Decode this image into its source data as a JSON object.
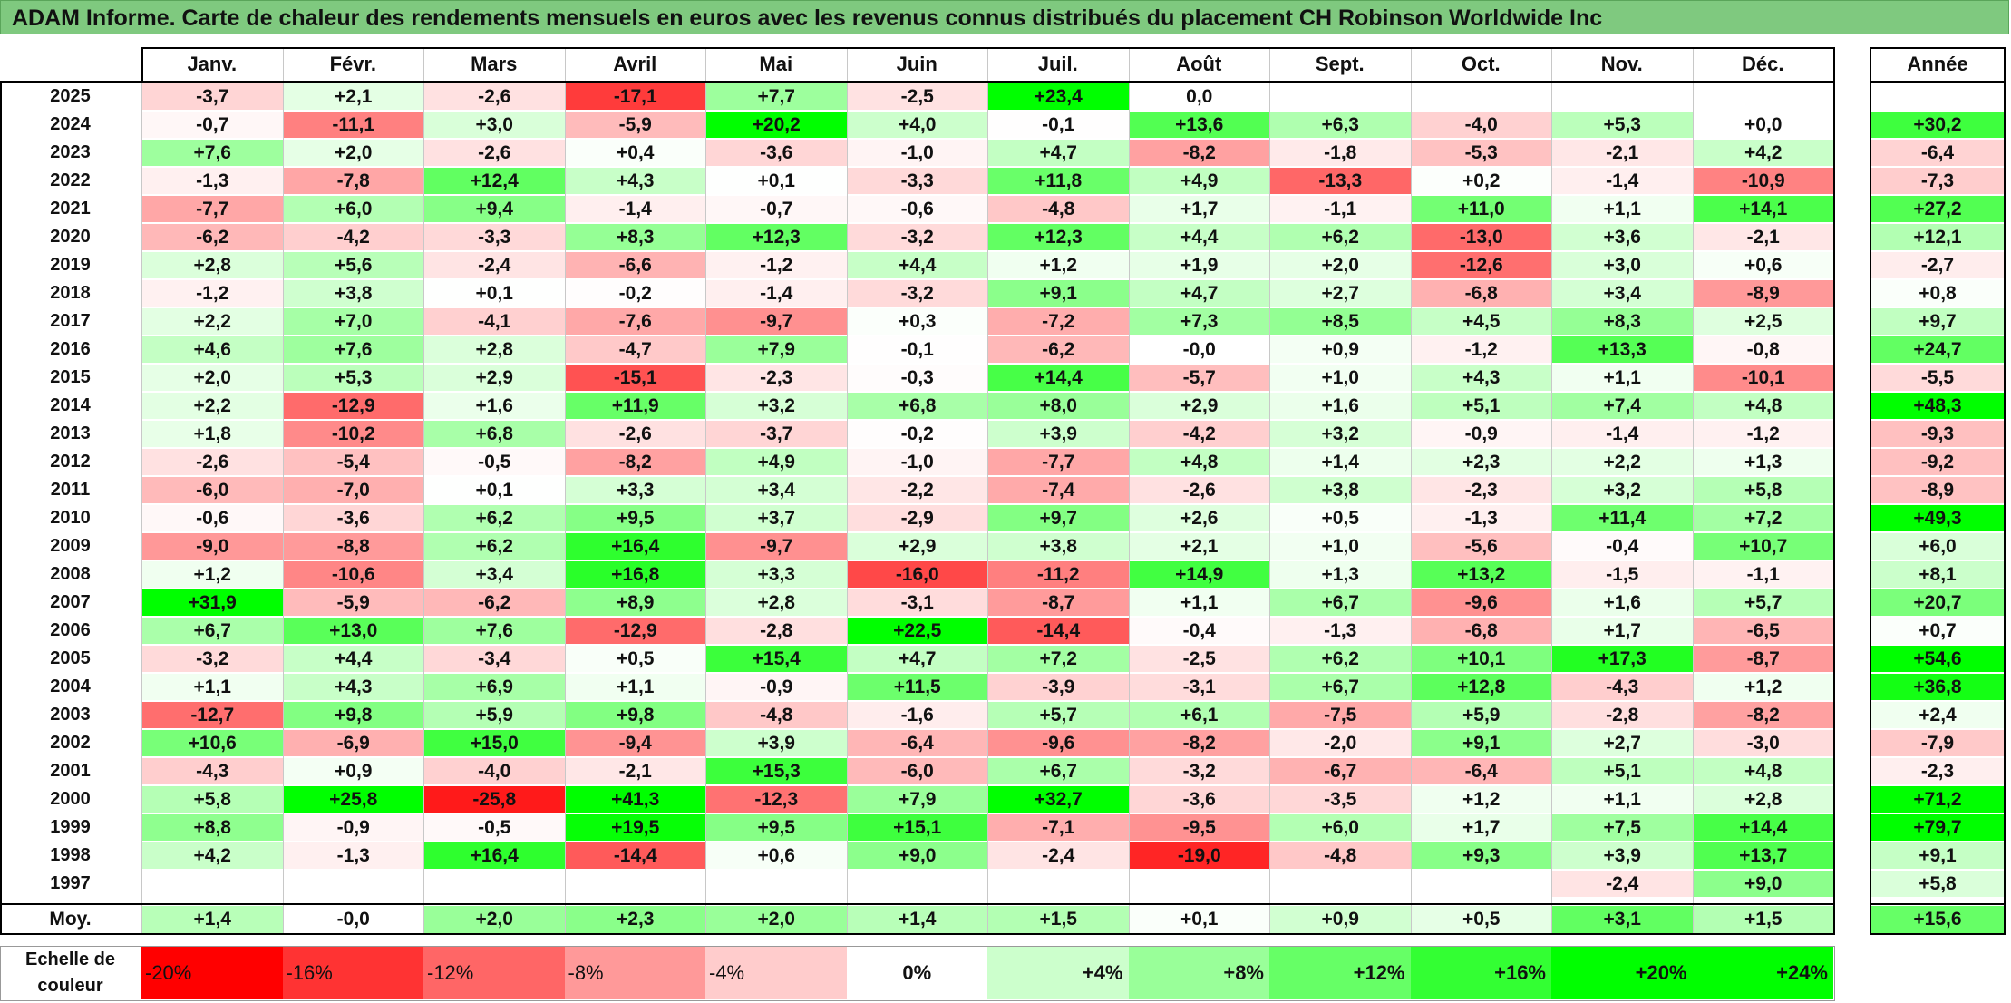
{
  "title": "ADAM Informe. Carte de chaleur des rendements mensuels en euros avec les revenus connus distribués du placement CH Robinson Worldwide Inc",
  "chart_data": {
    "type": "heatmap",
    "columns": [
      "Janv.",
      "Févr.",
      "Mars",
      "Avril",
      "Mai",
      "Juin",
      "Juil.",
      "Août",
      "Sept.",
      "Oct.",
      "Nov.",
      "Déc."
    ],
    "year_column": "Année",
    "rows": [
      {
        "year": "2025",
        "months": [
          "-3,7",
          "+2,1",
          "-2,6",
          "-17,1",
          "+7,7",
          "-2,5",
          "+23,4",
          "0,0",
          "",
          "",
          "",
          ""
        ],
        "annual": ""
      },
      {
        "year": "2024",
        "months": [
          "-0,7",
          "-11,1",
          "+3,0",
          "-5,9",
          "+20,2",
          "+4,0",
          "-0,1",
          "+13,6",
          "+6,3",
          "-4,0",
          "+5,3",
          "+0,0"
        ],
        "annual": "+30,2"
      },
      {
        "year": "2023",
        "months": [
          "+7,6",
          "+2,0",
          "-2,6",
          "+0,4",
          "-3,6",
          "-1,0",
          "+4,7",
          "-8,2",
          "-1,8",
          "-5,3",
          "-2,1",
          "+4,2"
        ],
        "annual": "-6,4"
      },
      {
        "year": "2022",
        "months": [
          "-1,3",
          "-7,8",
          "+12,4",
          "+4,3",
          "+0,1",
          "-3,3",
          "+11,8",
          "+4,9",
          "-13,3",
          "+0,2",
          "-1,4",
          "-10,9"
        ],
        "annual": "-7,3"
      },
      {
        "year": "2021",
        "months": [
          "-7,7",
          "+6,0",
          "+9,4",
          "-1,4",
          "-0,7",
          "-0,6",
          "-4,8",
          "+1,7",
          "-1,1",
          "+11,0",
          "+1,1",
          "+14,1"
        ],
        "annual": "+27,2"
      },
      {
        "year": "2020",
        "months": [
          "-6,2",
          "-4,2",
          "-3,3",
          "+8,3",
          "+12,3",
          "-3,2",
          "+12,3",
          "+4,4",
          "+6,2",
          "-13,0",
          "+3,6",
          "-2,1"
        ],
        "annual": "+12,1"
      },
      {
        "year": "2019",
        "months": [
          "+2,8",
          "+5,6",
          "-2,4",
          "-6,6",
          "-1,2",
          "+4,4",
          "+1,2",
          "+1,9",
          "+2,0",
          "-12,6",
          "+3,0",
          "+0,6"
        ],
        "annual": "-2,7"
      },
      {
        "year": "2018",
        "months": [
          "-1,2",
          "+3,8",
          "+0,1",
          "-0,2",
          "-1,4",
          "-3,2",
          "+9,1",
          "+4,7",
          "+2,7",
          "-6,8",
          "+3,4",
          "-8,9"
        ],
        "annual": "+0,8"
      },
      {
        "year": "2017",
        "months": [
          "+2,2",
          "+7,0",
          "-4,1",
          "-7,6",
          "-9,7",
          "+0,3",
          "-7,2",
          "+7,3",
          "+8,5",
          "+4,5",
          "+8,3",
          "+2,5"
        ],
        "annual": "+9,7"
      },
      {
        "year": "2016",
        "months": [
          "+4,6",
          "+7,6",
          "+2,8",
          "-4,7",
          "+7,9",
          "-0,1",
          "-6,2",
          "-0,0",
          "+0,9",
          "-1,2",
          "+13,3",
          "-0,8"
        ],
        "annual": "+24,7"
      },
      {
        "year": "2015",
        "months": [
          "+2,0",
          "+5,3",
          "+2,9",
          "-15,1",
          "-2,3",
          "-0,3",
          "+14,4",
          "-5,7",
          "+1,0",
          "+4,3",
          "+1,1",
          "-10,1"
        ],
        "annual": "-5,5"
      },
      {
        "year": "2014",
        "months": [
          "+2,2",
          "-12,9",
          "+1,6",
          "+11,9",
          "+3,2",
          "+6,8",
          "+8,0",
          "+2,9",
          "+1,6",
          "+5,1",
          "+7,4",
          "+4,8"
        ],
        "annual": "+48,3"
      },
      {
        "year": "2013",
        "months": [
          "+1,8",
          "-10,2",
          "+6,8",
          "-2,6",
          "-3,7",
          "-0,2",
          "+3,9",
          "-4,2",
          "+3,2",
          "-0,9",
          "-1,4",
          "-1,2"
        ],
        "annual": "-9,3"
      },
      {
        "year": "2012",
        "months": [
          "-2,6",
          "-5,4",
          "-0,5",
          "-8,2",
          "+4,9",
          "-1,0",
          "-7,7",
          "+4,8",
          "+1,4",
          "+2,3",
          "+2,2",
          "+1,3"
        ],
        "annual": "-9,2"
      },
      {
        "year": "2011",
        "months": [
          "-6,0",
          "-7,0",
          "+0,1",
          "+3,3",
          "+3,4",
          "-2,2",
          "-7,4",
          "-2,6",
          "+3,8",
          "-2,3",
          "+3,2",
          "+5,8"
        ],
        "annual": "-8,9"
      },
      {
        "year": "2010",
        "months": [
          "-0,6",
          "-3,6",
          "+6,2",
          "+9,5",
          "+3,7",
          "-2,9",
          "+9,7",
          "+2,6",
          "+0,5",
          "-1,3",
          "+11,4",
          "+7,2"
        ],
        "annual": "+49,3"
      },
      {
        "year": "2009",
        "months": [
          "-9,0",
          "-8,8",
          "+6,2",
          "+16,4",
          "-9,7",
          "+2,9",
          "+3,8",
          "+2,1",
          "+1,0",
          "-5,6",
          "-0,4",
          "+10,7"
        ],
        "annual": "+6,0"
      },
      {
        "year": "2008",
        "months": [
          "+1,2",
          "-10,6",
          "+3,4",
          "+16,8",
          "+3,3",
          "-16,0",
          "-11,2",
          "+14,9",
          "+1,3",
          "+13,2",
          "-1,5",
          "-1,1"
        ],
        "annual": "+8,1"
      },
      {
        "year": "2007",
        "months": [
          "+31,9",
          "-5,9",
          "-6,2",
          "+8,9",
          "+2,8",
          "-3,1",
          "-8,7",
          "+1,1",
          "+6,7",
          "-9,6",
          "+1,6",
          "+5,7"
        ],
        "annual": "+20,7"
      },
      {
        "year": "2006",
        "months": [
          "+6,7",
          "+13,0",
          "+7,6",
          "-12,9",
          "-2,8",
          "+22,5",
          "-14,4",
          "-0,4",
          "-1,3",
          "-6,8",
          "+1,7",
          "-6,5"
        ],
        "annual": "+0,7"
      },
      {
        "year": "2005",
        "months": [
          "-3,2",
          "+4,4",
          "-3,4",
          "+0,5",
          "+15,4",
          "+4,7",
          "+7,2",
          "-2,5",
          "+6,2",
          "+10,1",
          "+17,3",
          "-8,7"
        ],
        "annual": "+54,6"
      },
      {
        "year": "2004",
        "months": [
          "+1,1",
          "+4,3",
          "+6,9",
          "+1,1",
          "-0,9",
          "+11,5",
          "-3,9",
          "-3,1",
          "+6,7",
          "+12,8",
          "-4,3",
          "+1,2"
        ],
        "annual": "+36,8"
      },
      {
        "year": "2003",
        "months": [
          "-12,7",
          "+9,8",
          "+5,9",
          "+9,8",
          "-4,8",
          "-1,6",
          "+5,7",
          "+6,1",
          "-7,5",
          "+5,9",
          "-2,8",
          "-8,2"
        ],
        "annual": "+2,4"
      },
      {
        "year": "2002",
        "months": [
          "+10,6",
          "-6,9",
          "+15,0",
          "-9,4",
          "+3,9",
          "-6,4",
          "-9,6",
          "-8,2",
          "-2,0",
          "+9,1",
          "+2,7",
          "-3,0"
        ],
        "annual": "-7,9"
      },
      {
        "year": "2001",
        "months": [
          "-4,3",
          "+0,9",
          "-4,0",
          "-2,1",
          "+15,3",
          "-6,0",
          "+6,7",
          "-3,2",
          "-6,7",
          "-6,4",
          "+5,1",
          "+4,8"
        ],
        "annual": "-2,3"
      },
      {
        "year": "2000",
        "months": [
          "+5,8",
          "+25,8",
          "-25,8",
          "+41,3",
          "-12,3",
          "+7,9",
          "+32,7",
          "-3,6",
          "-3,5",
          "+1,2",
          "+1,1",
          "+2,8"
        ],
        "annual": "+71,2"
      },
      {
        "year": "1999",
        "months": [
          "+8,8",
          "-0,9",
          "-0,5",
          "+19,5",
          "+9,5",
          "+15,1",
          "-7,1",
          "-9,5",
          "+6,0",
          "+1,7",
          "+7,5",
          "+14,4"
        ],
        "annual": "+79,7"
      },
      {
        "year": "1998",
        "months": [
          "+4,2",
          "-1,3",
          "+16,4",
          "-14,4",
          "+0,6",
          "+9,0",
          "-2,4",
          "-19,0",
          "-4,8",
          "+9,3",
          "+3,9",
          "+13,7"
        ],
        "annual": "+9,1"
      },
      {
        "year": "1997",
        "months": [
          "",
          "",
          "",
          "",
          "",
          "",
          "",
          "",
          "",
          "",
          "-2,4",
          "+9,0"
        ],
        "annual": "+5,8"
      }
    ],
    "average": {
      "label": "Moy.",
      "months": [
        "+1,4",
        "-0,0",
        "+2,0",
        "+2,3",
        "+2,0",
        "+1,4",
        "+1,5",
        "+0,1",
        "+0,9",
        "+0,5",
        "+3,1",
        "+1,5"
      ],
      "annual": "+15,6"
    },
    "color_scale": {
      "label": "Echelle de couleur",
      "stops": [
        {
          "label": "-20%",
          "value": -20,
          "color": "#ff0000"
        },
        {
          "label": "-16%",
          "value": -16,
          "color": "#ff3333"
        },
        {
          "label": "-12%",
          "value": -12,
          "color": "#ff6666"
        },
        {
          "label": "-8%",
          "value": -8,
          "color": "#ff9999"
        },
        {
          "label": "-4%",
          "value": -4,
          "color": "#ffcccc"
        },
        {
          "label": "0%",
          "value": 0,
          "color": "#ffffff"
        },
        {
          "label": "+4%",
          "value": 4,
          "color": "#ccffcc"
        },
        {
          "label": "+8%",
          "value": 8,
          "color": "#99ff99"
        },
        {
          "label": "+12%",
          "value": 12,
          "color": "#66ff66"
        },
        {
          "label": "+16%",
          "value": 16,
          "color": "#33ff33"
        },
        {
          "label": "+20%",
          "value": 20,
          "color": "#00ff00"
        },
        {
          "label": "+24%",
          "value": 24,
          "color": "#00ff00"
        }
      ]
    }
  }
}
